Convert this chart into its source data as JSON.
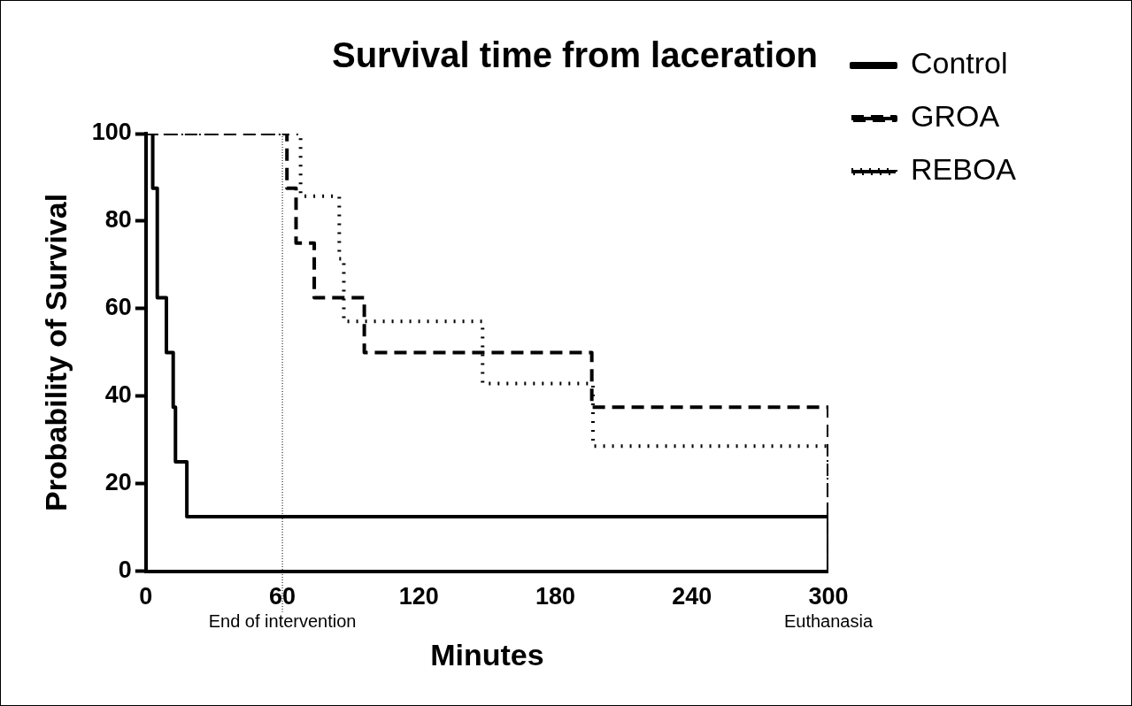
{
  "chart_data": {
    "type": "step",
    "title": "Survival time from laceration",
    "xlabel": "Minutes",
    "ylabel": "Probability of Survival",
    "xlim": [
      0,
      300
    ],
    "xticks": [
      0,
      60,
      120,
      180,
      240,
      300
    ],
    "ylim": [
      0,
      100
    ],
    "yticks": [
      0,
      20,
      40,
      60,
      80,
      100
    ],
    "series": [
      {
        "name": "Control",
        "color": "#000000",
        "line_style": "solid",
        "x": [
          0,
          3,
          5,
          9,
          12,
          13,
          18,
          300
        ],
        "values": [
          100,
          87.5,
          62.5,
          50,
          37.5,
          25,
          12.5,
          0
        ]
      },
      {
        "name": "GROA",
        "color": "#000000",
        "line_style": "dashed",
        "x": [
          0,
          62,
          66,
          74,
          96,
          196,
          300
        ],
        "values": [
          100,
          87.5,
          75,
          62.5,
          50,
          37.5,
          0
        ]
      },
      {
        "name": "REBOA",
        "color": "#000000",
        "line_style": "dotted",
        "x": [
          0,
          68,
          85,
          87,
          148,
          196.5,
          300
        ],
        "values": [
          100,
          85.7,
          71.4,
          57.1,
          42.9,
          28.6,
          0
        ]
      }
    ],
    "ref_lines": [
      {
        "axis": "x",
        "value": 60,
        "label": "End of intervention",
        "line_style": "dotted",
        "color": "#000000"
      }
    ],
    "annotations": [
      "Euthanasia"
    ],
    "legend": "top right",
    "marker": "none",
    "grid": false
  }
}
